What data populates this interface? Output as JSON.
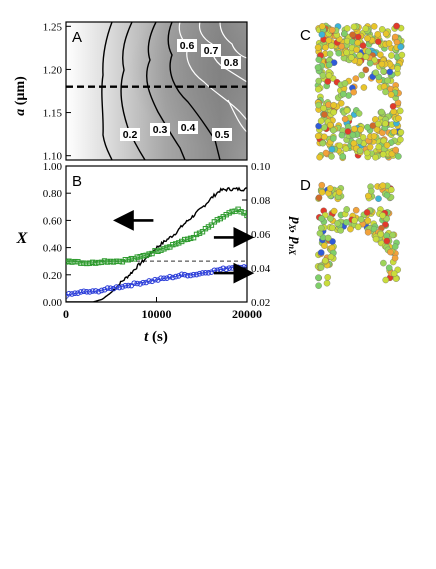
{
  "figure": {
    "panels": {
      "A": {
        "label": "A",
        "y_axis_label": "a (µm)",
        "y_axis_symbol": "a",
        "y_axis_unit": "(µm)",
        "y_ticks": [
          "1.25",
          "1.20",
          "1.15",
          "1.10"
        ],
        "contour_labels": [
          "0.2",
          "0.3",
          "0.4",
          "0.5",
          "0.6",
          "0.7",
          "0.8"
        ],
        "dashed_line_value": 1.18
      },
      "B": {
        "label": "B",
        "left_axis_label": "X",
        "right_axis_label": "px, pnx",
        "right_axis_symbol_1": "p",
        "right_axis_sub_1": "X",
        "right_axis_symbol_2": "p",
        "right_axis_sub_2": "nX",
        "x_axis_label": "t (s)",
        "x_axis_symbol": "t",
        "x_axis_unit": "(s)",
        "x_ticks": [
          "0",
          "10000",
          "20000"
        ],
        "left_ticks": [
          "1.00",
          "0.80",
          "0.60",
          "0.40",
          "0.20",
          "0.00"
        ],
        "right_ticks": [
          "0.10",
          "0.08",
          "0.06",
          "0.04",
          "0.02"
        ]
      },
      "C": {
        "label": "C"
      },
      "D": {
        "label": "D"
      }
    },
    "colors": {
      "black_series": "#000000",
      "green_series": "#2e9b2e",
      "blue_series": "#2a3cd8",
      "dashed_ref": "#7f7f7f",
      "particle_palette": [
        "#e8c52a",
        "#c9dc3c",
        "#9fd45a",
        "#7fcf6a",
        "#f2a23a",
        "#e23a2a",
        "#2f5bd8",
        "#3cb4d8",
        "#d06a2a"
      ]
    }
  },
  "chart_data": [
    {
      "panel": "A",
      "type": "heatmap",
      "title": "",
      "xlabel": "",
      "ylabel": "a (µm)",
      "ylim": [
        1.095,
        1.255
      ],
      "yticks": [
        1.1,
        1.15,
        1.2,
        1.25
      ],
      "contour_levels": [
        0.2,
        0.3,
        0.4,
        0.5,
        0.6,
        0.7,
        0.8
      ],
      "grid": false
    },
    {
      "panel": "B",
      "type": "line",
      "title": "",
      "xlabel": "t (s)",
      "ylabel": "X",
      "y2label": "px, pnx",
      "xlim": [
        0,
        20000
      ],
      "ylim": [
        0,
        1.0
      ],
      "y2lim": [
        0.02,
        0.1
      ],
      "xticks": [
        0,
        10000,
        20000
      ],
      "yticks": [
        0,
        0.2,
        0.4,
        0.6,
        0.8,
        1.0
      ],
      "y2ticks": [
        0.02,
        0.04,
        0.06,
        0.08,
        0.1
      ],
      "grid": false,
      "series": [
        {
          "axis": "left",
          "color": "#000000",
          "marker": "none",
          "x": [
            0,
            1000,
            2000,
            3000,
            4000,
            5000,
            6000,
            7000,
            8000,
            9000,
            10000,
            11000,
            12000,
            13000,
            14000,
            15000,
            16000,
            17000,
            18000,
            19000,
            20000
          ],
          "y": [
            0.0,
            0.0,
            0.0,
            0.0,
            0.02,
            0.07,
            0.14,
            0.2,
            0.27,
            0.33,
            0.4,
            0.45,
            0.5,
            0.57,
            0.63,
            0.69,
            0.76,
            0.82,
            0.83,
            0.83,
            0.83
          ]
        },
        {
          "axis": "right",
          "color": "#2e9b2e",
          "marker": "square",
          "x": [
            0,
            1000,
            2000,
            3000,
            4000,
            5000,
            6000,
            7000,
            8000,
            9000,
            10000,
            11000,
            12000,
            13000,
            14000,
            15000,
            16000,
            17000,
            18000,
            19000,
            20000
          ],
          "y": [
            0.044,
            0.044,
            0.043,
            0.043,
            0.044,
            0.044,
            0.044,
            0.045,
            0.046,
            0.048,
            0.05,
            0.052,
            0.054,
            0.056,
            0.058,
            0.061,
            0.065,
            0.069,
            0.072,
            0.074,
            0.071
          ]
        },
        {
          "axis": "right",
          "color": "#2a3cd8",
          "marker": "circle",
          "x": [
            0,
            1000,
            2000,
            3000,
            4000,
            5000,
            6000,
            7000,
            8000,
            9000,
            10000,
            11000,
            12000,
            13000,
            14000,
            15000,
            16000,
            17000,
            18000,
            19000,
            20000
          ],
          "y": [
            0.024,
            0.025,
            0.026,
            0.026,
            0.027,
            0.028,
            0.029,
            0.03,
            0.031,
            0.032,
            0.033,
            0.034,
            0.035,
            0.036,
            0.036,
            0.037,
            0.038,
            0.039,
            0.04,
            0.041,
            0.04
          ]
        }
      ],
      "reference_line": {
        "axis": "right",
        "y": 0.044,
        "style": "dashed"
      },
      "arrows": [
        {
          "points_to": "left",
          "at_x": 8000,
          "at_y_left": 0.6
        },
        {
          "points_to": "right",
          "at_x": 18000,
          "at_y_right": 0.058
        },
        {
          "points_to": "right",
          "at_x": 18000,
          "at_y_right": 0.037
        }
      ]
    }
  ]
}
